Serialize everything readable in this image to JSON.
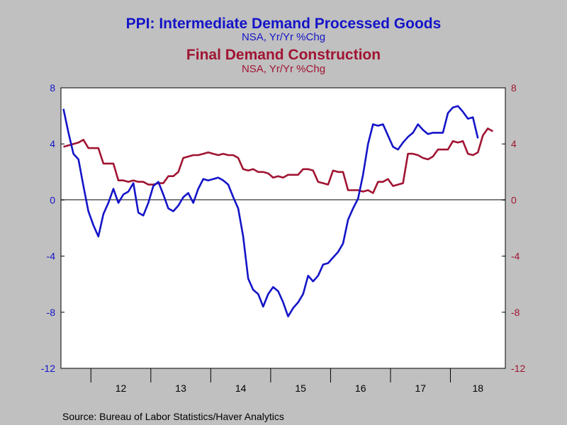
{
  "chart_data": {
    "type": "line",
    "title1": "PPI: Intermediate Demand Processed Goods",
    "subtitle1": "NSA, Yr/Yr %Chg",
    "title2": "Final Demand Construction",
    "subtitle2": "NSA, Yr/Yr %Chg",
    "source": "Source:  Bureau of Labor Statistics/Haver Analytics",
    "ylim": [
      -12,
      8
    ],
    "yticks": [
      8,
      4,
      0,
      -4,
      -8,
      -12
    ],
    "yticklabels_left": [
      "8",
      "4",
      "0",
      "-4",
      "-8",
      "-12"
    ],
    "yticklabels_right": [
      "8",
      "4",
      "0",
      "-4",
      "-8",
      "-12"
    ],
    "x_year_labels": [
      "12",
      "13",
      "14",
      "15",
      "16",
      "17",
      "18"
    ],
    "x_start": "2011-07",
    "grid": false,
    "zero_line": true,
    "colors": {
      "series1": "#1414c8",
      "series2": "#a01432",
      "title1": "#1414c8",
      "title2": "#a01432",
      "axis_left": "#1414c8",
      "axis_right": "#a01432",
      "plot_bg": "#ffffff",
      "page_bg": "#c0c0c0"
    },
    "series": [
      {
        "name": "PPI: Intermediate Demand Processed Goods",
        "values": [
          6.5,
          4.8,
          3.3,
          2.9,
          1.0,
          -0.8,
          -1.8,
          -2.6,
          -1.0,
          -0.2,
          0.8,
          -0.2,
          0.4,
          0.6,
          1.2,
          -0.9,
          -1.1,
          -0.2,
          1.0,
          1.3,
          0.4,
          -0.6,
          -0.8,
          -0.4,
          0.2,
          0.5,
          -0.2,
          0.8,
          1.5,
          1.4,
          1.5,
          1.6,
          1.4,
          1.1,
          0.2,
          -0.6,
          -2.6,
          -5.6,
          -6.4,
          -6.7,
          -7.6,
          -6.7,
          -6.2,
          -6.5,
          -7.3,
          -8.3,
          -7.7,
          -7.3,
          -6.7,
          -5.4,
          -5.8,
          -5.4,
          -4.6,
          -4.5,
          -4.1,
          -3.7,
          -3.1,
          -1.4,
          -0.6,
          0.1,
          1.8,
          4.0,
          5.4,
          5.3,
          5.4,
          4.6,
          3.8,
          3.6,
          4.1,
          4.5,
          4.8,
          5.4,
          5.0,
          4.7,
          4.8,
          4.8,
          4.8,
          6.2,
          6.6,
          6.7,
          6.3,
          5.8,
          5.9,
          4.4
        ]
      },
      {
        "name": "Final Demand Construction",
        "values": [
          3.8,
          3.9,
          4.0,
          4.1,
          4.3,
          3.7,
          3.7,
          3.7,
          2.6,
          2.6,
          2.6,
          1.4,
          1.4,
          1.3,
          1.4,
          1.3,
          1.3,
          1.1,
          1.1,
          1.2,
          1.2,
          1.7,
          1.7,
          2.0,
          3.0,
          3.1,
          3.2,
          3.2,
          3.3,
          3.4,
          3.3,
          3.2,
          3.3,
          3.2,
          3.2,
          3.0,
          2.2,
          2.1,
          2.2,
          2.0,
          2.0,
          1.9,
          1.6,
          1.7,
          1.6,
          1.8,
          1.8,
          1.8,
          2.2,
          2.2,
          2.1,
          1.3,
          1.2,
          1.1,
          2.1,
          2.0,
          2.0,
          0.7,
          0.7,
          0.7,
          0.6,
          0.7,
          0.5,
          1.3,
          1.3,
          1.5,
          1.0,
          1.1,
          1.2,
          3.3,
          3.3,
          3.2,
          3.0,
          2.9,
          3.1,
          3.6,
          3.6,
          3.6,
          4.2,
          4.1,
          4.2,
          3.3,
          3.2,
          3.4,
          4.6,
          5.1,
          4.9
        ]
      }
    ]
  }
}
